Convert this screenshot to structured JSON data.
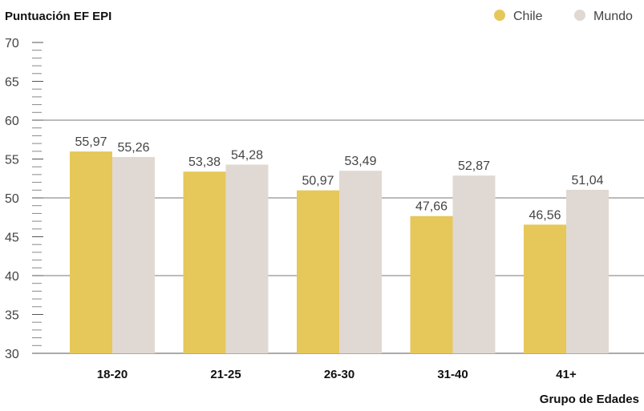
{
  "chart_data": {
    "type": "bar",
    "title": "Puntuación EF EPI",
    "xlabel": "Grupo de Edades",
    "ylabel": "",
    "ylim": [
      30,
      70
    ],
    "yticks": [
      30,
      35,
      40,
      45,
      50,
      55,
      60,
      65,
      70
    ],
    "grid": true,
    "legend_position": "top-right",
    "categories": [
      "18-20",
      "21-25",
      "26-30",
      "31-40",
      "41+"
    ],
    "series": [
      {
        "name": "Chile",
        "color": "#e6c85a",
        "values": [
          55.97,
          53.38,
          50.97,
          47.66,
          46.56
        ],
        "labels": [
          "55,97",
          "53,38",
          "50,97",
          "47,66",
          "46,56"
        ]
      },
      {
        "name": "Mundo",
        "color": "#e0d8d3",
        "values": [
          55.26,
          54.28,
          53.49,
          52.87,
          51.04
        ],
        "labels": [
          "55,26",
          "54,28",
          "53,49",
          "52,87",
          "51,04"
        ]
      }
    ]
  }
}
